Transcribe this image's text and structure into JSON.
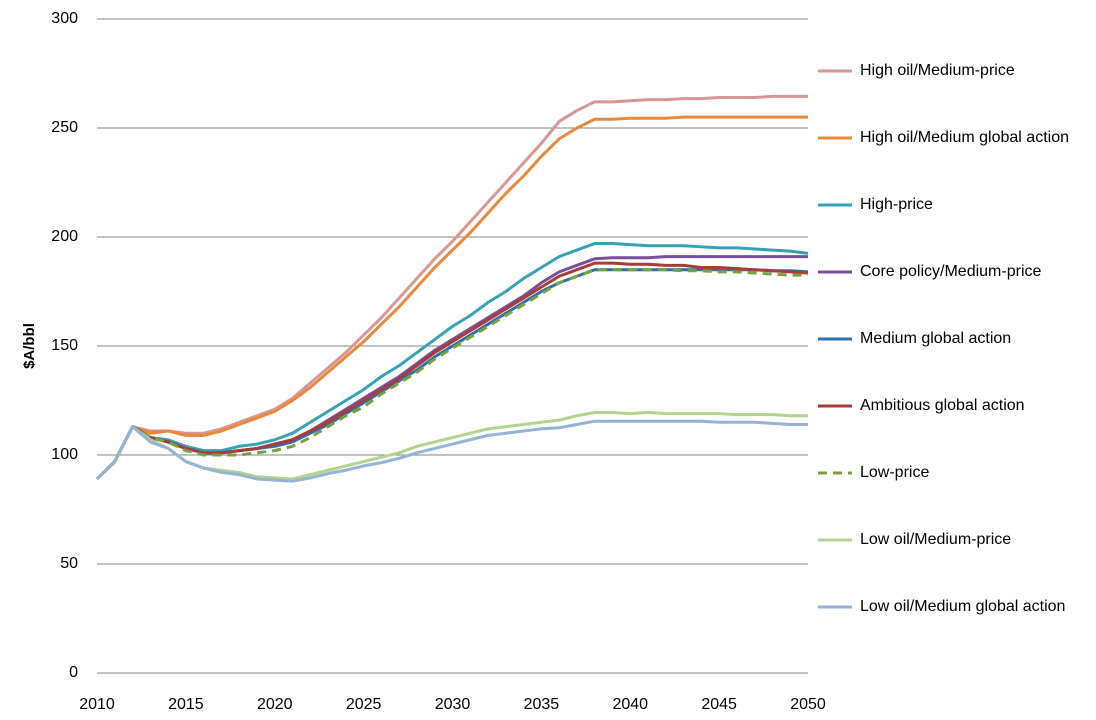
{
  "chart_data": {
    "type": "line",
    "ylabel": "$A/bbl",
    "x": [
      2010,
      2011,
      2012,
      2013,
      2014,
      2015,
      2016,
      2017,
      2018,
      2019,
      2020,
      2021,
      2022,
      2023,
      2024,
      2025,
      2026,
      2027,
      2028,
      2029,
      2030,
      2031,
      2032,
      2033,
      2034,
      2035,
      2036,
      2037,
      2038,
      2039,
      2040,
      2041,
      2042,
      2043,
      2044,
      2045,
      2046,
      2047,
      2048,
      2049,
      2050
    ],
    "xlim": [
      2010,
      2050
    ],
    "xticks": [
      2010,
      2015,
      2020,
      2025,
      2030,
      2035,
      2040,
      2045,
      2050
    ],
    "ylim": [
      0,
      300
    ],
    "yticks": [
      0,
      50,
      100,
      150,
      200,
      250,
      300
    ],
    "grid": true,
    "legend": "right",
    "series": [
      {
        "name": "High oil/Medium-price",
        "color": "#d99694",
        "values": [
          89,
          97,
          113,
          111,
          111,
          110,
          110,
          112,
          115,
          118,
          121,
          126,
          133,
          140,
          147,
          155,
          163,
          172,
          181,
          190,
          198,
          207,
          216,
          225,
          234,
          243,
          253,
          258,
          262,
          262,
          262.5,
          263,
          263,
          263.5,
          263.5,
          264,
          264,
          264,
          264.5,
          264.5,
          264.5
        ]
      },
      {
        "name": "High oil/Medium global action",
        "color": "#e8883a",
        "values": [
          89,
          97,
          113,
          110,
          111,
          109,
          109,
          111,
          114,
          117,
          120,
          125,
          131,
          138,
          145,
          152,
          160,
          168,
          177,
          186,
          194,
          202,
          211,
          220,
          228,
          237,
          245,
          250,
          254,
          254,
          254.5,
          254.5,
          254.5,
          255,
          255,
          255,
          255,
          255,
          255,
          255,
          255
        ]
      },
      {
        "name": "High-price",
        "color": "#36a2b6",
        "values": [
          89,
          97,
          113,
          108,
          107,
          104,
          102,
          102,
          104,
          105,
          107,
          110,
          115,
          120,
          125,
          130,
          136,
          141,
          147,
          153,
          159,
          164,
          170,
          175,
          181,
          186,
          191,
          194,
          197,
          197,
          196.5,
          196,
          196,
          196,
          195.5,
          195,
          195,
          194.5,
          194,
          193.5,
          192.5
        ]
      },
      {
        "name": "Core policy/Medium-price",
        "color": "#7a4f9a",
        "values": [
          89,
          97,
          113,
          108,
          106,
          103,
          101,
          101,
          102,
          103,
          105,
          107,
          111,
          116,
          121,
          126,
          131,
          136,
          142,
          148,
          153,
          158,
          163,
          168,
          173,
          179,
          184,
          187,
          190,
          190.5,
          190.5,
          190.5,
          191,
          191,
          191,
          191,
          191,
          191,
          191,
          191,
          191
        ]
      },
      {
        "name": "Medium global action",
        "color": "#2f6fad",
        "values": [
          89,
          97,
          113,
          108,
          106,
          103,
          101,
          101,
          102,
          103,
          104,
          106,
          110,
          114,
          119,
          124,
          129,
          134,
          139,
          145,
          150,
          155,
          160,
          165,
          170,
          175,
          179,
          182,
          185,
          185,
          185,
          185,
          185,
          185,
          185,
          185,
          185,
          185,
          184.5,
          184.5,
          184
        ]
      },
      {
        "name": "Ambitious global action",
        "color": "#a83c3a",
        "values": [
          89,
          97,
          113,
          108,
          106,
          103,
          101,
          101,
          102,
          103,
          105,
          107,
          111,
          115,
          120,
          125,
          130,
          135,
          141,
          147,
          152,
          157,
          162,
          167,
          172,
          177,
          182,
          185,
          188,
          188,
          187.5,
          187.5,
          187,
          187,
          186,
          186,
          185.5,
          185,
          184.5,
          184,
          183.5
        ]
      },
      {
        "name": "Low-price",
        "color": "#77a13c",
        "style": "dashed",
        "values": [
          89,
          97,
          113,
          108,
          106,
          102,
          100,
          100,
          100,
          101,
          102,
          104,
          108,
          113,
          118,
          122,
          128,
          133,
          138,
          144,
          149,
          154,
          159,
          164,
          169,
          174,
          179,
          182,
          185,
          185,
          185,
          185,
          185,
          184.5,
          184.5,
          184,
          184,
          183.5,
          183,
          182.5,
          182.5
        ]
      },
      {
        "name": "Low oil/Medium-price",
        "color": "#b3d48f",
        "values": [
          89,
          97,
          113,
          107,
          103,
          97,
          94,
          93,
          92,
          90,
          89.5,
          89,
          91,
          93,
          95,
          97,
          99,
          101,
          104,
          106,
          108,
          110,
          112,
          113,
          114,
          115,
          116,
          118,
          119.5,
          119.5,
          119,
          119.5,
          119,
          119,
          119,
          119,
          118.5,
          118.5,
          118.5,
          118,
          118
        ]
      },
      {
        "name": "Low oil/Medium global action",
        "color": "#95b3d7",
        "values": [
          89,
          97,
          113,
          106,
          103,
          97,
          94,
          92,
          91,
          89,
          88.5,
          88,
          89.5,
          91.5,
          93,
          95,
          96.5,
          98.5,
          101,
          103,
          105,
          107,
          109,
          110,
          111,
          112,
          112.5,
          114,
          115.5,
          115.5,
          115.5,
          115.5,
          115.5,
          115.5,
          115.5,
          115,
          115,
          115,
          114.5,
          114,
          114
        ]
      }
    ]
  }
}
